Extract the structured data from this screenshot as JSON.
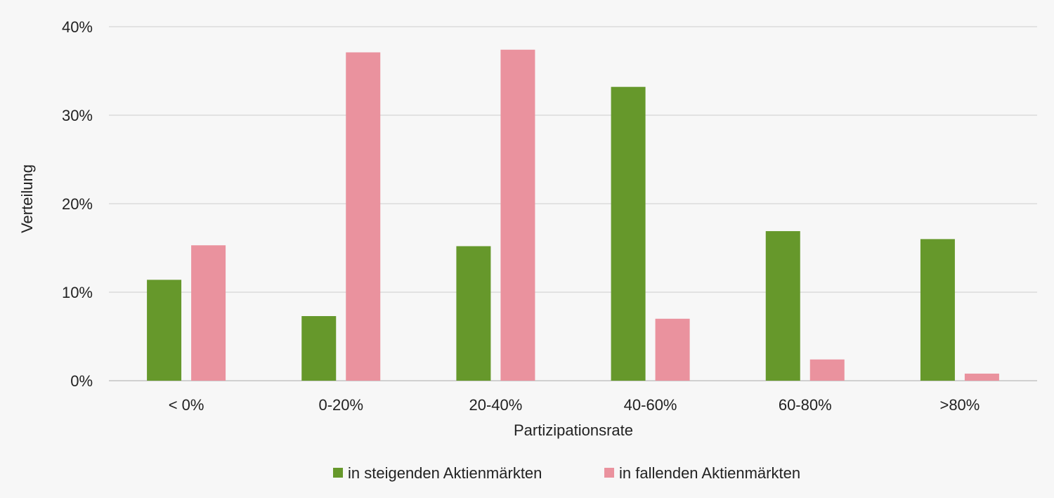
{
  "chart_data": {
    "type": "bar",
    "title": "",
    "xlabel": "Partizipationsrate",
    "ylabel": "Verteilung",
    "categories": [
      "< 0%",
      "0-20%",
      "20-40%",
      "40-60%",
      "60-80%",
      ">80%"
    ],
    "series": [
      {
        "name": "in steigenden Aktienmärkten",
        "color": "#66982b",
        "values": [
          11.4,
          7.3,
          15.2,
          33.2,
          16.9,
          16.0
        ]
      },
      {
        "name": "in fallenden Aktienmärkten",
        "color": "#ea929e",
        "values": [
          15.3,
          37.1,
          37.4,
          7.0,
          2.4,
          0.8
        ]
      }
    ],
    "ylim": [
      0,
      40
    ],
    "yticks": [
      0,
      10,
      20,
      30,
      40
    ],
    "ytick_labels": [
      "0%",
      "10%",
      "20%",
      "30%",
      "40%"
    ],
    "grid": true,
    "legend_position": "bottom-center"
  }
}
